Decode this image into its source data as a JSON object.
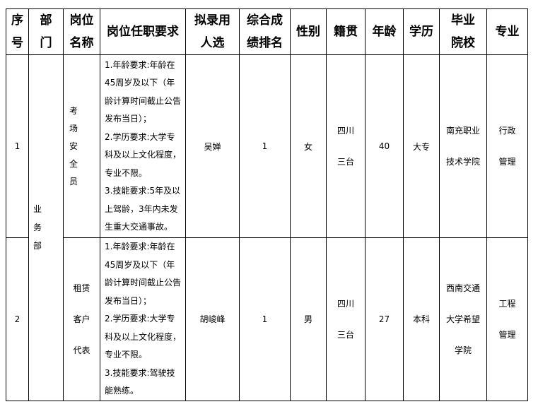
{
  "headers": [
    "序号",
    "部门",
    "岗位名称",
    "岗位任职要求",
    "拟录用人选",
    "综合成绩排名",
    "性别",
    "籍贯",
    "年龄",
    "学历",
    "毕业院校",
    "专业"
  ],
  "header_lines": {
    "seq": [
      "序",
      "号"
    ],
    "dept": [
      "部",
      "门"
    ],
    "title": [
      "岗位",
      "名称"
    ],
    "req": [
      "岗位任职要求"
    ],
    "candidate": [
      "拟录用",
      "人选"
    ],
    "rank": [
      "综合成",
      "绩排名"
    ],
    "gender": [
      "性别"
    ],
    "native": [
      "籍贯"
    ],
    "age": [
      "年龄"
    ],
    "edu": [
      "学历"
    ],
    "school": [
      "毕业",
      "院校"
    ],
    "major": [
      "专业"
    ]
  },
  "department": "业务部",
  "rows": [
    {
      "seq": "1",
      "title": "考场安全员",
      "requirements": [
        "1.年龄要求:年龄在45周岁及以下（年龄计算时间截止公告发布当日）；",
        "2.学历要求:大学专科及以上文化程度，专业不限。",
        "3.技能要求:5年及以上驾龄，3年内未发生重大交通事故。"
      ],
      "candidate": "吴婵",
      "rank": "1",
      "gender": "女",
      "native": [
        "四川",
        "三台"
      ],
      "age": "40",
      "edu": "大专",
      "school": [
        "南充职业",
        "技术学院"
      ],
      "major": [
        "行政",
        "管理"
      ]
    },
    {
      "seq": "2",
      "title": [
        "租赁",
        "客户",
        "代表"
      ],
      "requirements": [
        "1.年龄要求:年龄在45周岁及以下（年龄计算时间截止公告发布当日）；",
        "2.学历要求:大学专科及以上文化程度，专业不限。",
        "3.技能要求:驾驶技能熟练。"
      ],
      "candidate": "胡峻峰",
      "rank": "1",
      "gender": "男",
      "native": [
        "四川",
        "三台"
      ],
      "age": "27",
      "edu": "本科",
      "school": [
        "西南交通",
        "大学希望",
        "学院"
      ],
      "major": [
        "工程",
        "管理"
      ]
    }
  ]
}
